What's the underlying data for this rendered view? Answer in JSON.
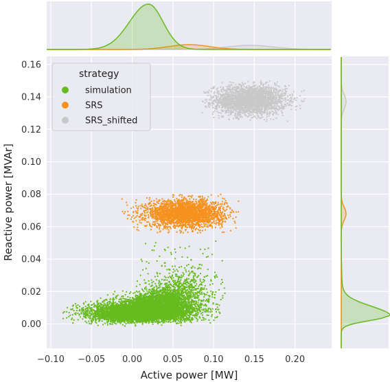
{
  "chart_data": {
    "type": "scatter",
    "subtype": "jointplot with marginal KDE",
    "xlabel": "Active power [MW]",
    "ylabel": "Reactive power [MVAr]",
    "xlim": [
      -0.105,
      0.245
    ],
    "ylim": [
      -0.015,
      0.165
    ],
    "xticks": [
      -0.1,
      -0.05,
      0.0,
      0.05,
      0.1,
      0.15,
      0.2
    ],
    "xtick_labels": [
      "−0.10",
      "−0.05",
      "0.00",
      "0.05",
      "0.10",
      "0.15",
      "0.20"
    ],
    "yticks": [
      0.0,
      0.02,
      0.04,
      0.06,
      0.08,
      0.1,
      0.12,
      0.14,
      0.16
    ],
    "ytick_labels": [
      "0.00",
      "0.02",
      "0.04",
      "0.06",
      "0.08",
      "0.10",
      "0.12",
      "0.14",
      "0.16"
    ],
    "grid": true,
    "background": "#eaeaf2",
    "legend": {
      "title": "strategy",
      "placement": "top-left",
      "entries": [
        "simulation",
        "SRS",
        "SRS_shifted"
      ]
    },
    "series": [
      {
        "name": "simulation",
        "color": "#66bb1e",
        "x_range": [
          -0.085,
          0.115
        ],
        "y_range": [
          -0.002,
          0.052
        ],
        "x_center": 0.02,
        "y_center": 0.008,
        "approx_points": 9000
      },
      {
        "name": "SRS",
        "color": "#f5921e",
        "x_range": [
          -0.015,
          0.135
        ],
        "y_range": [
          0.056,
          0.08
        ],
        "x_center": 0.065,
        "y_center": 0.068,
        "approx_points": 3000
      },
      {
        "name": "SRS_shifted",
        "color": "#c8c8c8",
        "x_range": [
          0.085,
          0.215
        ],
        "y_range": [
          0.125,
          0.15
        ],
        "x_center": 0.145,
        "y_center": 0.138,
        "approx_points": 3000
      }
    ],
    "marginal_x_peaks": {
      "simulation": 0.02,
      "SRS": 0.07,
      "SRS_shifted": 0.145
    },
    "marginal_y_peaks": {
      "simulation": 0.005,
      "SRS": 0.068,
      "SRS_shifted": 0.137
    }
  }
}
